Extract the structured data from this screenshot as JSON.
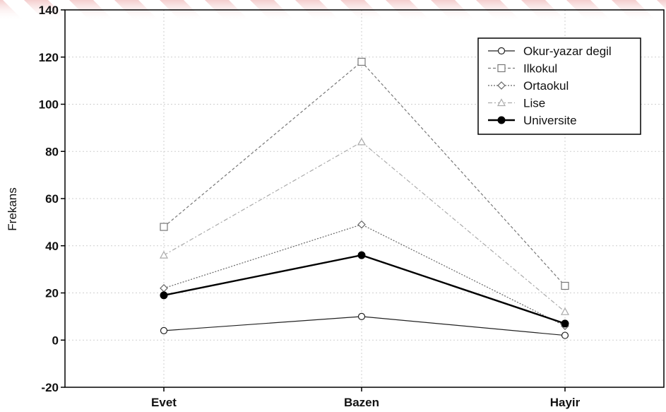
{
  "chart_data": {
    "type": "line",
    "title": "",
    "xlabel": "",
    "ylabel": "Frekans",
    "categories": [
      "Evet",
      "Bazen",
      "Hayir"
    ],
    "ylim": [
      -20,
      140
    ],
    "yticks": [
      -20,
      0,
      20,
      40,
      60,
      80,
      100,
      120,
      140
    ],
    "grid": true,
    "legend_position": "top-right",
    "series": [
      {
        "name": "Okur-yazar degil",
        "values": [
          4,
          10,
          2
        ],
        "marker": "circle-open",
        "line": "solid",
        "color": "#222222"
      },
      {
        "name": "Ilkokul",
        "values": [
          48,
          118,
          23
        ],
        "marker": "square-open",
        "line": "dashed",
        "color": "#777777"
      },
      {
        "name": "Ortaokul",
        "values": [
          22,
          49,
          6
        ],
        "marker": "diamond-open",
        "line": "dotted",
        "color": "#666666"
      },
      {
        "name": "Lise",
        "values": [
          36,
          84,
          12
        ],
        "marker": "triangle-open",
        "line": "dashdot",
        "color": "#aaaaaa"
      },
      {
        "name": "Universite",
        "values": [
          19,
          36,
          7
        ],
        "marker": "circle-filled",
        "line": "solid-thick",
        "color": "#000000"
      }
    ]
  }
}
